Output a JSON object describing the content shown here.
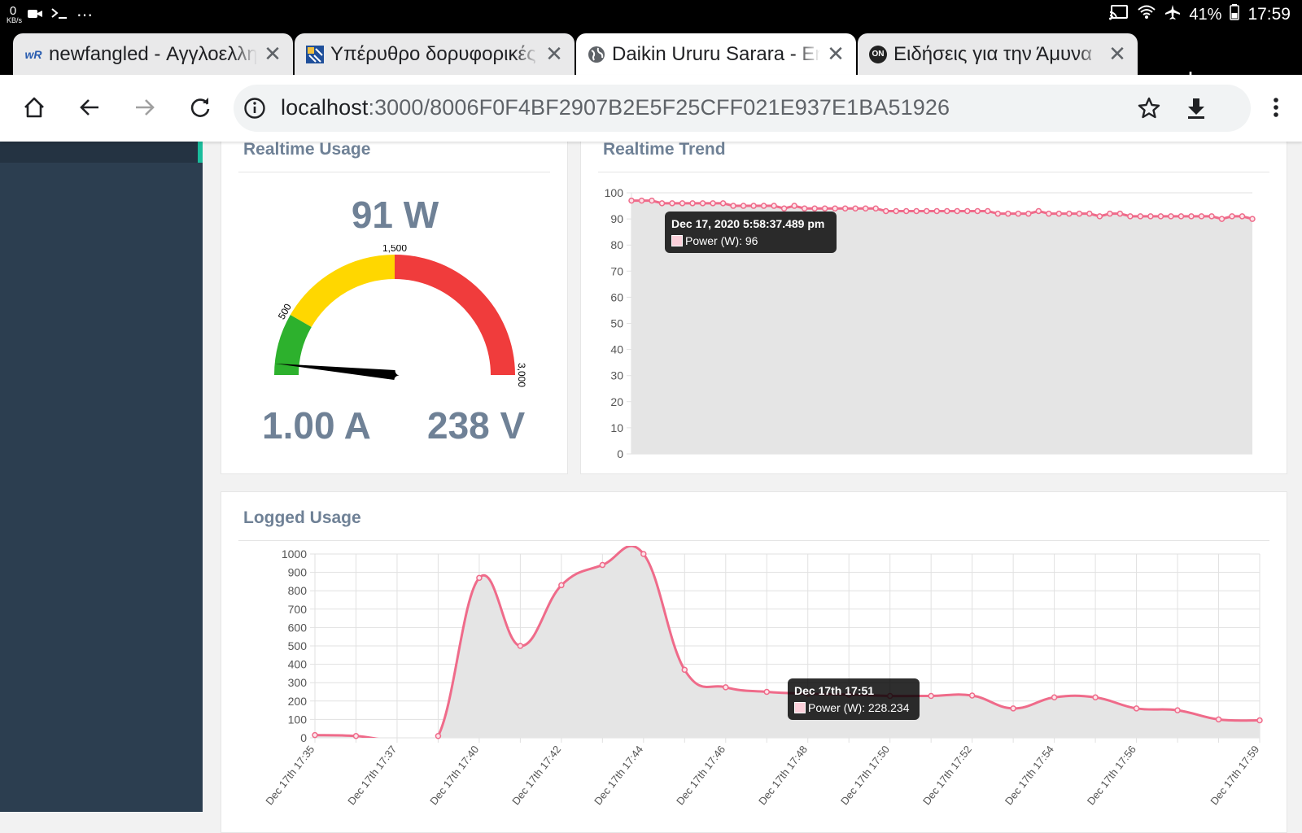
{
  "status_bar": {
    "net_speed_value": "0",
    "net_speed_unit": "KB/s",
    "overflow": "⋯",
    "battery": "41%",
    "time": "17:59"
  },
  "tabs": [
    {
      "favicon": "wR",
      "title": "newfangled - Αγγλοελληνικό",
      "close": "✕",
      "active": false
    },
    {
      "favicon": "satellite-icon",
      "title": "Υπέρυθρο δορυφορικές",
      "close": "✕",
      "active": false
    },
    {
      "favicon": "globe-icon",
      "title": "Daikin Ururu Sarara - Energy",
      "close": "✕",
      "active": true
    },
    {
      "favicon": "ON",
      "title": "Ειδήσεις για την Άμυνα",
      "close": "✕",
      "active": false
    }
  ],
  "new_tab": "+",
  "address": {
    "host": "localhost",
    "path": ":3000/8006F0F4BF2907B2E5F25CFF021E937E1BA51926"
  },
  "realtime_usage": {
    "title": "Realtime Usage",
    "power": "91 W",
    "current": "1.00 A",
    "voltage": "238 V",
    "gauge": {
      "min": 0,
      "max": 3000,
      "value": 91,
      "bands": [
        {
          "from": 0,
          "to": 500,
          "color": "#2db12d"
        },
        {
          "from": 500,
          "to": 1500,
          "color": "#ffd700"
        },
        {
          "from": 1500,
          "to": 3000,
          "color": "#f03c3c"
        }
      ],
      "labels": [
        "500",
        "1,500",
        "3,000"
      ]
    }
  },
  "realtime_trend": {
    "title": "Realtime Trend",
    "tooltip_title": "Dec 17, 2020 5:58:37.489 pm",
    "tooltip_body": "Power (W): 96"
  },
  "logged_usage": {
    "title": "Logged Usage",
    "tooltip_title": "Dec 17th 17:51",
    "tooltip_body": "Power (W): 228.234"
  },
  "chart_data": [
    {
      "type": "line",
      "name": "realtime_trend",
      "series": [
        {
          "name": "Power (W)",
          "values": [
            97,
            97,
            97,
            96,
            96,
            96,
            96,
            96,
            96,
            96,
            95,
            95,
            95,
            95,
            95,
            94,
            95,
            94,
            94,
            94,
            94,
            94,
            94,
            94,
            94,
            93,
            93,
            93,
            93,
            93,
            93,
            93,
            93,
            93,
            93,
            93,
            92,
            92,
            92,
            92,
            93,
            92,
            92,
            92,
            92,
            92,
            91,
            92,
            92,
            91,
            91,
            91,
            91,
            91,
            91,
            91,
            91,
            91,
            90,
            91,
            91,
            90
          ]
        }
      ],
      "ylim": [
        0,
        100
      ],
      "yticks": [
        0,
        10,
        20,
        30,
        40,
        50,
        60,
        70,
        80,
        90,
        100
      ],
      "line_color": "#ef6b8a",
      "fill_color": "#e5e5e5"
    },
    {
      "type": "line",
      "name": "logged_usage",
      "series": [
        {
          "name": "Power (W)",
          "values": [
            15,
            10,
            -15,
            10,
            870,
            500,
            830,
            940,
            1000,
            370,
            275,
            250,
            240,
            235,
            228,
            228,
            230,
            160,
            220,
            220,
            160,
            150,
            100,
            95
          ]
        }
      ],
      "ylim": [
        0,
        1000
      ],
      "yticks": [
        0,
        100,
        200,
        300,
        400,
        500,
        600,
        700,
        800,
        900,
        1000
      ],
      "x_tick_labels": [
        "Dec 17th 17:35",
        "Dec 17th 17:37",
        "Dec 17th 17:40",
        "Dec 17th 17:42",
        "Dec 17th 17:44",
        "Dec 17th 17:46",
        "Dec 17th 17:48",
        "Dec 17th 17:50",
        "Dec 17th 17:52",
        "Dec 17th 17:54",
        "Dec 17th 17:56",
        "Dec 17th 17:59"
      ],
      "line_color": "#ef6b8a",
      "fill_color": "#e5e5e5"
    }
  ]
}
